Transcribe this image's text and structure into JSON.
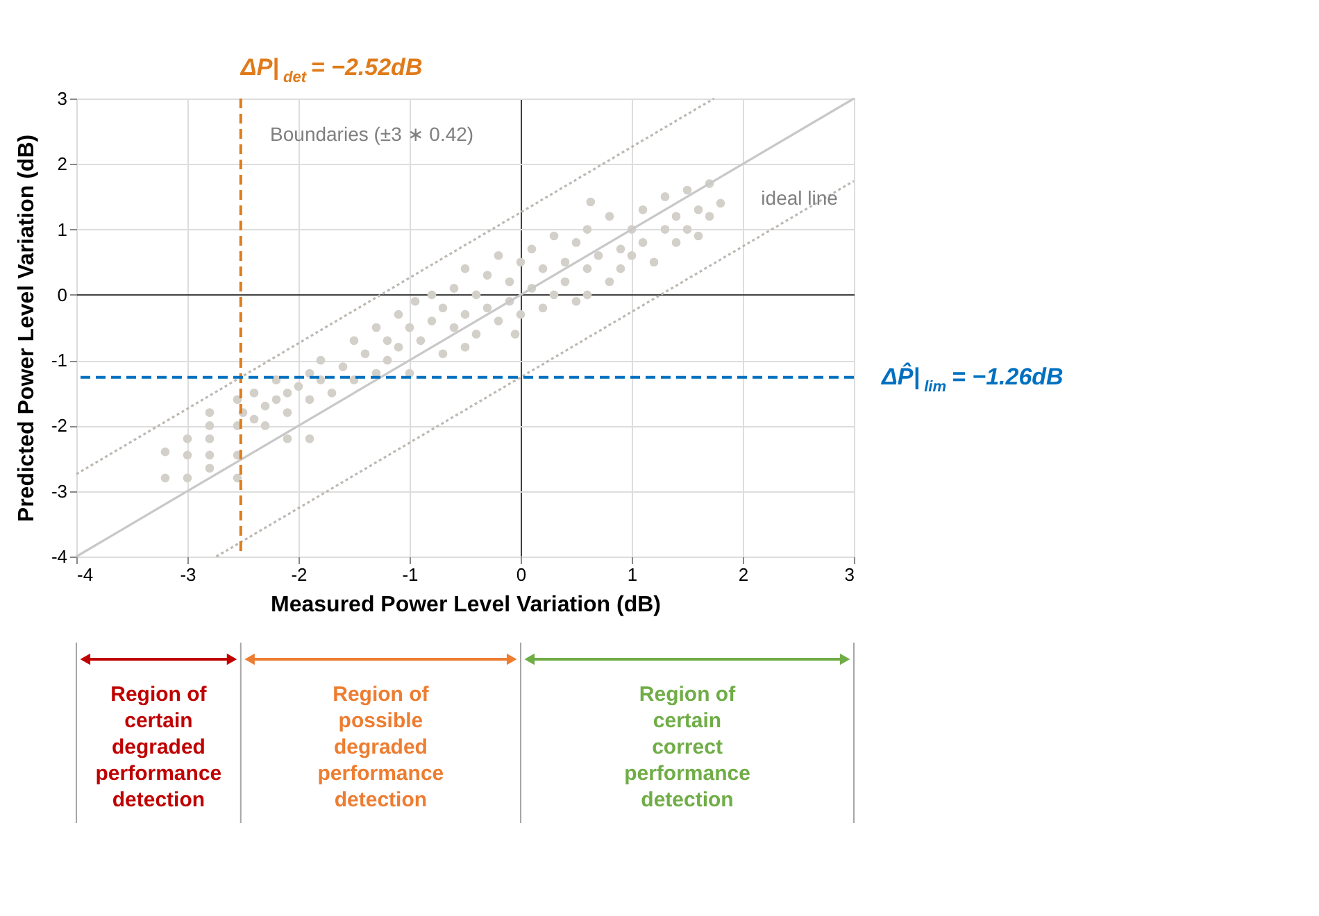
{
  "chart_data": {
    "type": "scatter",
    "xlabel": "Measured Power Level Variation (dB)",
    "ylabel": "Predicted Power Level Variation (dB)",
    "xlim": [
      -4,
      3
    ],
    "ylim": [
      -4,
      3
    ],
    "xticks": [
      -4,
      -3,
      -2,
      -1,
      0,
      1,
      2,
      3
    ],
    "yticks": [
      -4,
      -3,
      -2,
      -1,
      0,
      1,
      2,
      3
    ],
    "grid": true,
    "series": [
      {
        "color": "#d3cfc9",
        "marker": "circle",
        "x": [
          -3.2,
          -3.2,
          -3.0,
          -3.0,
          -3.0,
          -2.8,
          -2.8,
          -2.8,
          -2.8,
          -2.8,
          -2.55,
          -2.55,
          -2.55,
          -2.55,
          -2.5,
          -2.4,
          -2.4,
          -2.3,
          -2.3,
          -2.2,
          -2.2,
          -2.1,
          -2.1,
          -2.1,
          -2.0,
          -1.9,
          -1.9,
          -1.9,
          -1.8,
          -1.8,
          -1.7,
          -1.6,
          -1.5,
          -1.5,
          -1.4,
          -1.3,
          -1.3,
          -1.2,
          -1.2,
          -1.1,
          -1.1,
          -1.0,
          -1.0,
          -0.95,
          -0.9,
          -0.8,
          -0.8,
          -0.7,
          -0.7,
          -0.6,
          -0.6,
          -0.5,
          -0.5,
          -0.5,
          -0.4,
          -0.4,
          -0.3,
          -0.3,
          -0.2,
          -0.2,
          -0.1,
          -0.1,
          -0.05,
          0.0,
          0.0,
          0.1,
          0.1,
          0.2,
          0.2,
          0.3,
          0.3,
          0.4,
          0.4,
          0.5,
          0.5,
          0.6,
          0.6,
          0.6,
          0.63,
          0.7,
          0.8,
          0.8,
          0.9,
          0.9,
          1.0,
          1.0,
          1.1,
          1.1,
          1.2,
          1.3,
          1.3,
          1.4,
          1.4,
          1.5,
          1.5,
          1.6,
          1.6,
          1.7,
          1.7,
          1.8
        ],
        "values": [
          -2.4,
          -2.8,
          -2.2,
          -2.45,
          -2.8,
          -1.8,
          -2.0,
          -2.2,
          -2.45,
          -2.65,
          -1.6,
          -2.0,
          -2.45,
          -2.8,
          -1.8,
          -1.5,
          -1.9,
          -1.7,
          -2.0,
          -1.3,
          -1.6,
          -1.5,
          -1.8,
          -2.2,
          -1.4,
          -1.2,
          -1.6,
          -2.2,
          -1.0,
          -1.3,
          -1.5,
          -1.1,
          -0.7,
          -1.3,
          -0.9,
          -0.5,
          -1.2,
          -0.7,
          -1.0,
          -0.3,
          -0.8,
          -0.5,
          -1.2,
          -0.1,
          -0.7,
          0.0,
          -0.4,
          -0.9,
          -0.2,
          0.1,
          -0.5,
          0.4,
          -0.3,
          -0.8,
          0.0,
          -0.6,
          0.3,
          -0.2,
          0.6,
          -0.4,
          0.2,
          -0.1,
          -0.6,
          0.5,
          -0.3,
          0.1,
          0.7,
          -0.2,
          0.4,
          0.9,
          0.0,
          0.5,
          0.2,
          0.8,
          -0.1,
          0.4,
          1.0,
          0.0,
          1.42,
          0.6,
          0.2,
          1.2,
          0.7,
          0.4,
          1.0,
          0.6,
          1.3,
          0.8,
          0.5,
          1.0,
          1.5,
          0.8,
          1.2,
          1.6,
          1.0,
          1.3,
          0.9,
          1.7,
          1.2,
          1.4
        ]
      },
      {
        "type": "line",
        "color": "#c8c8c8",
        "marker": "none",
        "line_style": "solid",
        "x": [
          -4,
          3
        ],
        "values": [
          -4,
          3
        ]
      },
      {
        "type": "line",
        "color": "#bdb8b2",
        "marker": "none",
        "line_style": "dotted",
        "x": [
          -4,
          1.74
        ],
        "values": [
          -2.74,
          3
        ]
      },
      {
        "type": "line",
        "color": "#bdb8b2",
        "marker": "none",
        "line_style": "dotted",
        "x": [
          -2.74,
          3
        ],
        "values": [
          -4,
          1.74
        ]
      }
    ],
    "ref_lines": [
      {
        "axis": "x",
        "value": -2.52,
        "label": "ΔP|$_{det}$= −2.52dB",
        "color": "#e07b1a",
        "line_style": "dashed"
      },
      {
        "axis": "y",
        "value": -1.26,
        "label": "ΔP̂|$_{lim}$= −1.26dB",
        "color": "#0070c0",
        "line_style": "dashed"
      }
    ],
    "annotations": [
      "Boundaries (±3 ∗ 0.42)",
      "ideal line",
      "Region of certain degraded performance detection",
      "Region of possible degraded performance detection",
      "Region of certain correct performance detection"
    ]
  }
}
